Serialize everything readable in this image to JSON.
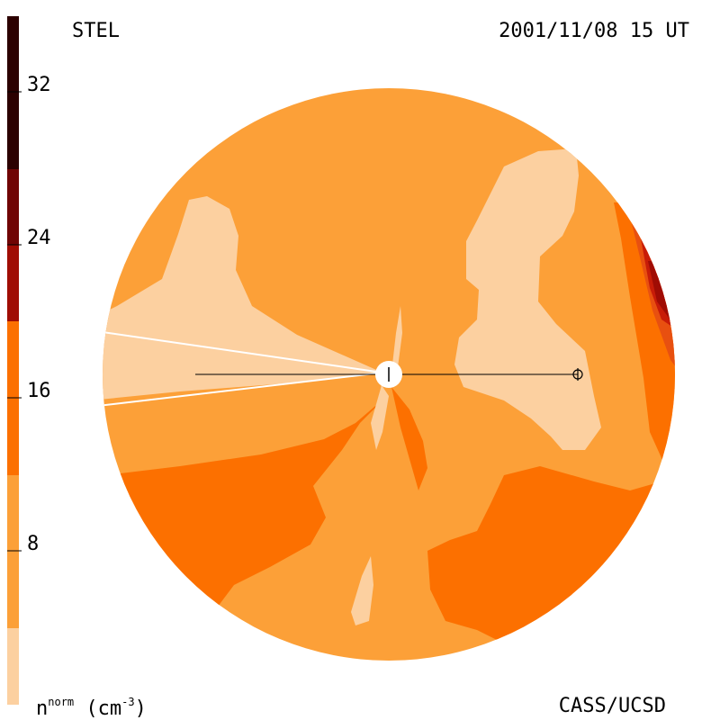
{
  "header": {
    "label_left": "STEL",
    "datetime": "2001/11/08 15 UT"
  },
  "footer": {
    "credit": "CASS/UCSD"
  },
  "colorbar": {
    "unit_label_base": "n",
    "unit_label_sup": "norm",
    "unit_label_units": "(cm",
    "unit_label_exp": "-3",
    "unit_label_close": ")",
    "ticks": [
      "32",
      "24",
      "16",
      "8"
    ],
    "colors": [
      "#fcd0a0",
      "#fca038",
      "#fc7000",
      "#e85010",
      "#c81c08",
      "#a00c04",
      "#700404",
      "#2c0000"
    ]
  },
  "map_colors": {
    "pale": "#fcd0a0",
    "light": "#fca038",
    "mid": "#fc7000",
    "deep": "#e85010",
    "red": "#c81c08",
    "darkred": "#a00c04"
  }
}
